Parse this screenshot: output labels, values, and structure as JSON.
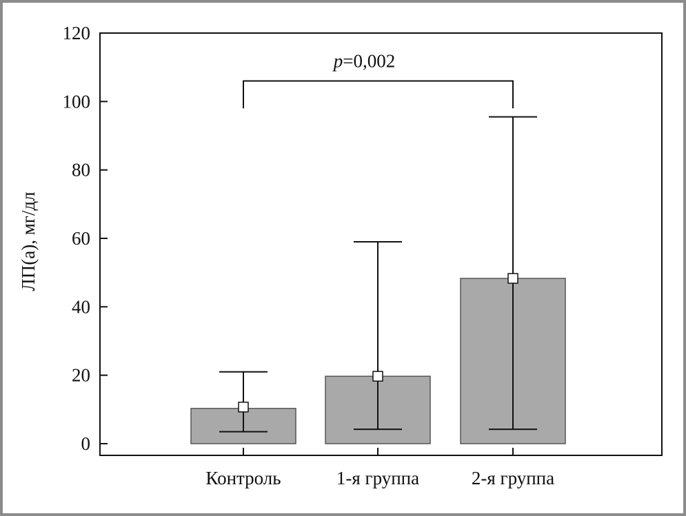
{
  "chart_data": {
    "type": "bar",
    "categories": [
      "Контроль",
      "1-я группа",
      "2-я группа"
    ],
    "series": [
      {
        "values": [
          10.3,
          19.7,
          48.3
        ],
        "error_low": [
          3.5,
          4.2,
          4.2
        ],
        "error_high": [
          21.0,
          59.0,
          95.5
        ],
        "marker": [
          10.7,
          19.7,
          48.3
        ]
      }
    ],
    "title": "",
    "xlabel": "",
    "ylabel": "ЛП(а), мг/дл",
    "ylim": [
      -3,
      120
    ],
    "yticks": [
      0,
      20,
      40,
      60,
      80,
      100,
      120
    ],
    "grid": false,
    "legend": "none",
    "annotations": [
      {
        "text_italic": "p",
        "text_rest": "=0,002",
        "from": 0,
        "to": 2,
        "bracket_y": 106,
        "drop_to_y": 98
      }
    ],
    "colors": {
      "bar_fill": "#a9a9a9",
      "bar_stroke": "#555555",
      "axis": "#111111",
      "frame": "#8c8c8c"
    }
  }
}
